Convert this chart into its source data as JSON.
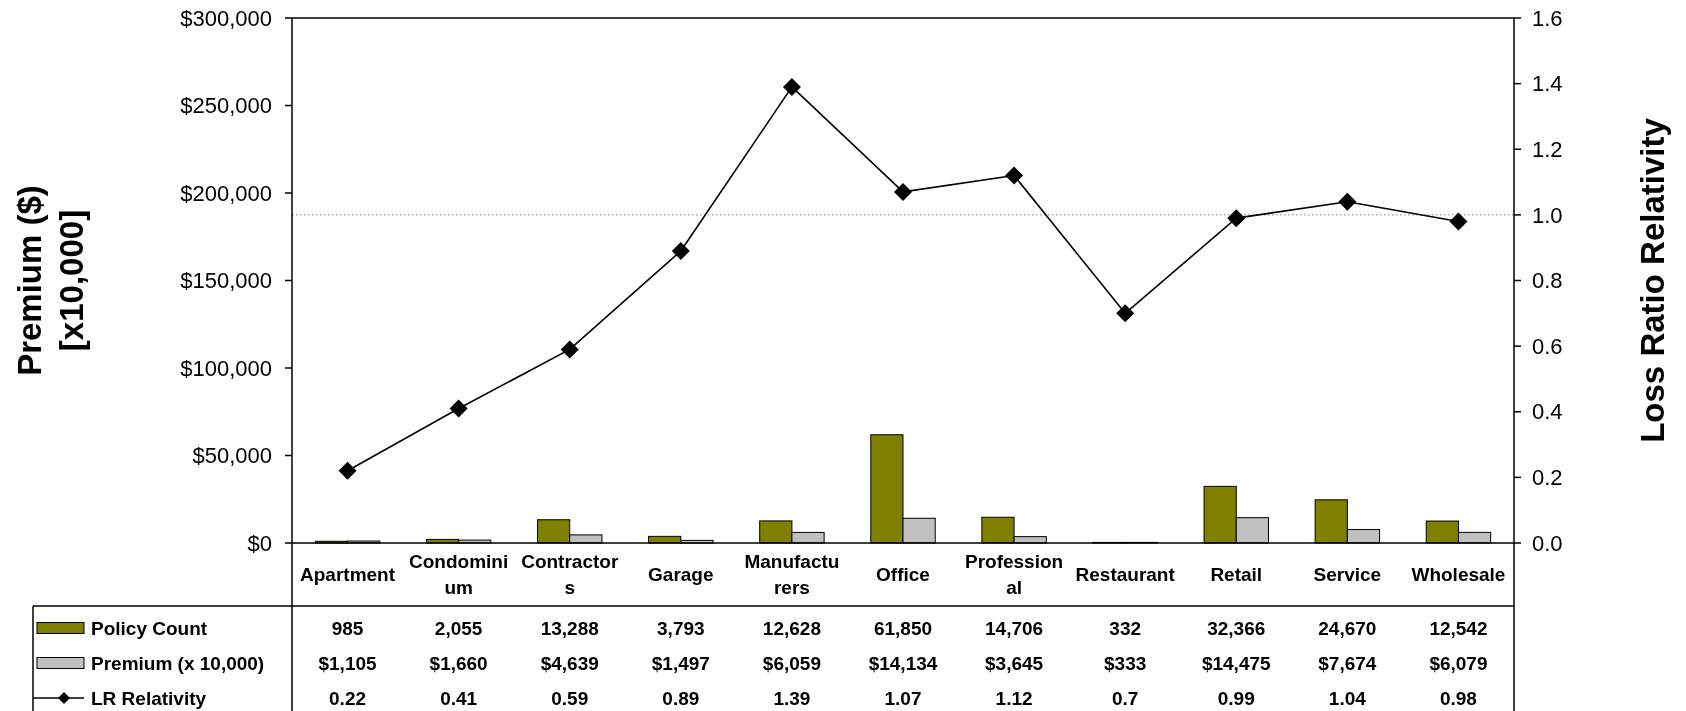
{
  "chart_data": {
    "type": "bar",
    "categories": [
      "Apartment",
      "Condominium",
      "Contractors",
      "Garage",
      "Manufacturers",
      "Office",
      "Professional",
      "Restaurant",
      "Retail",
      "Service",
      "Wholesale"
    ],
    "series": [
      {
        "name": "Policy Count",
        "color": "#808000",
        "values": [
          985,
          2055,
          13288,
          3793,
          12628,
          61850,
          14706,
          332,
          32366,
          24670,
          12542
        ],
        "value_labels": [
          "985",
          "2,055",
          "13,288",
          "3,793",
          "12,628",
          "61,850",
          "14,706",
          "332",
          "32,366",
          "24,670",
          "12,542"
        ]
      },
      {
        "name": "Premium (x 10,000)",
        "color": "#c0c0c0",
        "values": [
          1105,
          1660,
          4639,
          1497,
          6059,
          14134,
          3645,
          333,
          14475,
          7674,
          6079
        ],
        "value_labels": [
          "$1,105",
          "$1,660",
          "$4,639",
          "$1,497",
          "$6,059",
          "$14,134",
          "$3,645",
          "$333",
          "$14,475",
          "$7,674",
          "$6,079"
        ]
      },
      {
        "name": "LR Relativity",
        "type": "line",
        "axis": "y2",
        "color": "#000000",
        "values": [
          0.22,
          0.41,
          0.59,
          0.89,
          1.39,
          1.07,
          1.12,
          0.7,
          0.99,
          1.04,
          0.98
        ],
        "value_labels": [
          "0.22",
          "0.41",
          "0.59",
          "0.89",
          "1.39",
          "1.07",
          "1.12",
          "0.7",
          "0.99",
          "1.04",
          "0.98"
        ]
      }
    ],
    "ylabel": "Premium ($)\n[x10,000]",
    "y2label": "Loss Ratio Relativity",
    "ylim": [
      0,
      300000
    ],
    "yticks": [
      {
        "value": 0,
        "label": "$0"
      },
      {
        "value": 50000,
        "label": "$50,000"
      },
      {
        "value": 100000,
        "label": "$100,000"
      },
      {
        "value": 150000,
        "label": "$150,000"
      },
      {
        "value": 200000,
        "label": "$200,000"
      },
      {
        "value": 250000,
        "label": "$250,000"
      },
      {
        "value": 300000,
        "label": "$300,000"
      }
    ],
    "y2lim": [
      0,
      1.6
    ],
    "y2ticks": [
      {
        "value": 0,
        "label": "0.0"
      },
      {
        "value": 0.2,
        "label": "0.2"
      },
      {
        "value": 0.4,
        "label": "0.4"
      },
      {
        "value": 0.6,
        "label": "0.6"
      },
      {
        "value": 0.8,
        "label": "0.8"
      },
      {
        "value": 1,
        "label": "1.0"
      },
      {
        "value": 1.2,
        "label": "1.2"
      },
      {
        "value": 1.4,
        "label": "1.4"
      },
      {
        "value": 1.6,
        "label": "1.6"
      }
    ],
    "ref_lines": [
      {
        "axis": "y2",
        "value": 1,
        "color": "#808080",
        "line_style": "dotted"
      }
    ],
    "marker": "diamond",
    "legend": "bottom"
  }
}
